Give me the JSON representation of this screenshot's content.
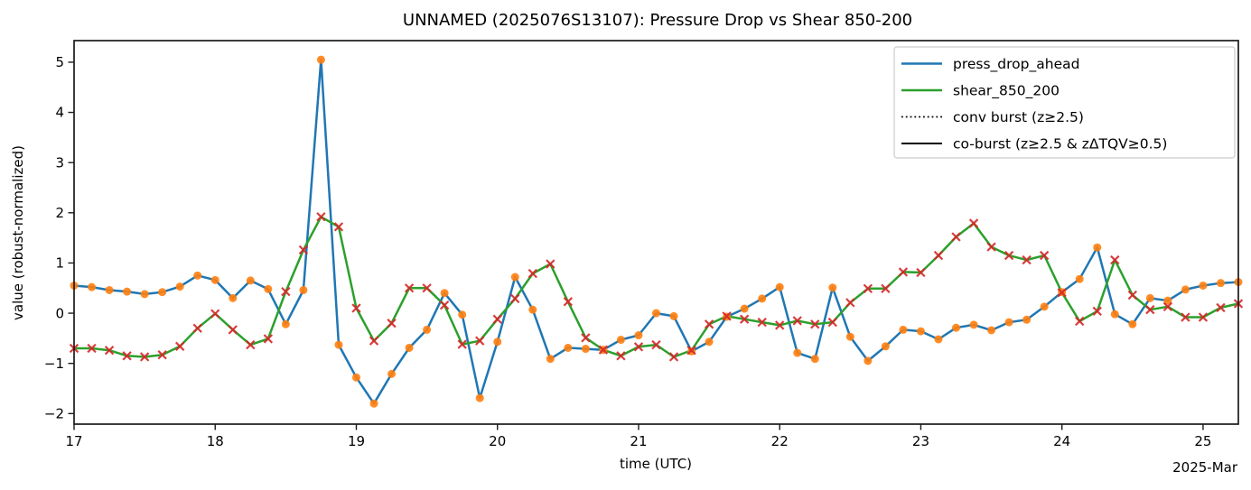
{
  "chart_data": {
    "type": "line",
    "title": "UNNAMED (2025076S13107): Pressure Drop vs Shear 850-200",
    "xlabel": "time (UTC)",
    "ylabel": "value (robust-normalized)",
    "x_offset_label": "2025-Mar",
    "grid": false,
    "legend_position": "upper right",
    "xlim": [
      17.0,
      25.25
    ],
    "ylim": [
      -2.21,
      5.43
    ],
    "x_tick_values": [
      17,
      18,
      19,
      20,
      21,
      22,
      23,
      24,
      25
    ],
    "x_tick_labels": [
      "17",
      "18",
      "19",
      "20",
      "21",
      "22",
      "23",
      "24",
      "25"
    ],
    "y_tick_values": [
      -2,
      -1,
      0,
      1,
      2,
      3,
      4,
      5
    ],
    "y_tick_labels": [
      "−2",
      "−1",
      "0",
      "1",
      "2",
      "3",
      "4",
      "5"
    ],
    "x": [
      17.0,
      17.125,
      17.25,
      17.375,
      17.5,
      17.625,
      17.75,
      17.875,
      18.0,
      18.125,
      18.25,
      18.375,
      18.5,
      18.625,
      18.75,
      18.875,
      19.0,
      19.125,
      19.25,
      19.375,
      19.5,
      19.625,
      19.75,
      19.875,
      20.0,
      20.125,
      20.25,
      20.375,
      20.5,
      20.625,
      20.75,
      20.875,
      21.0,
      21.125,
      21.25,
      21.375,
      21.5,
      21.625,
      21.75,
      21.875,
      22.0,
      22.125,
      22.25,
      22.375,
      22.5,
      22.625,
      22.75,
      22.875,
      23.0,
      23.125,
      23.25,
      23.375,
      23.5,
      23.625,
      23.75,
      23.875,
      24.0,
      24.125,
      24.25,
      24.375,
      24.5,
      24.625,
      24.75,
      24.875,
      25.0,
      25.125,
      25.25
    ],
    "series": [
      {
        "name": "press_drop_ahead",
        "color": "#1f77b4",
        "line_width": 2.5,
        "marker": "circle",
        "marker_color": "#ff7f0e",
        "values": [
          0.55,
          0.52,
          0.46,
          0.43,
          0.38,
          0.42,
          0.53,
          0.75,
          0.66,
          0.3,
          0.65,
          0.48,
          -0.22,
          0.46,
          5.05,
          -0.63,
          -1.28,
          -1.8,
          -1.21,
          -0.69,
          -0.33,
          0.4,
          -0.03,
          -1.69,
          -0.57,
          0.72,
          0.07,
          -0.91,
          -0.69,
          -0.71,
          -0.73,
          -0.53,
          -0.44,
          0.0,
          -0.06,
          -0.76,
          -0.57,
          -0.07,
          0.09,
          0.29,
          0.52,
          -0.79,
          -0.91,
          0.51,
          -0.47,
          -0.95,
          -0.66,
          -0.33,
          -0.36,
          -0.52,
          -0.29,
          -0.23,
          -0.34,
          -0.18,
          -0.13,
          0.13,
          0.42,
          0.68,
          1.31,
          -0.02,
          -0.22,
          0.3,
          0.25,
          0.47,
          0.55,
          0.6,
          0.62
        ]
      },
      {
        "name": "shear_850_200",
        "color": "#2ca02c",
        "line_width": 2.5,
        "marker": "x",
        "marker_color": "#d62728",
        "values": [
          -0.7,
          -0.7,
          -0.74,
          -0.85,
          -0.87,
          -0.83,
          -0.66,
          -0.3,
          -0.01,
          -0.33,
          -0.63,
          -0.51,
          0.43,
          1.26,
          1.92,
          1.72,
          0.1,
          -0.55,
          -0.2,
          0.5,
          0.5,
          0.16,
          -0.62,
          -0.55,
          -0.12,
          0.29,
          0.79,
          0.98,
          0.23,
          -0.49,
          -0.73,
          -0.85,
          -0.67,
          -0.63,
          -0.87,
          -0.74,
          -0.22,
          -0.06,
          -0.12,
          -0.18,
          -0.24,
          -0.15,
          -0.22,
          -0.18,
          0.21,
          0.49,
          0.49,
          0.82,
          0.81,
          1.15,
          1.52,
          1.79,
          1.32,
          1.15,
          1.06,
          1.15,
          0.41,
          -0.16,
          0.04,
          1.06,
          0.36,
          0.07,
          0.13,
          -0.08,
          -0.08,
          0.11,
          0.19
        ]
      }
    ],
    "legend": [
      {
        "label": "press_drop_ahead",
        "color": "#1f77b4",
        "style": "solid"
      },
      {
        "label": "shear_850_200",
        "color": "#2ca02c",
        "style": "solid"
      },
      {
        "label": "conv burst (z≥2.5)",
        "color": "#000000",
        "style": "dotted"
      },
      {
        "label": "co-burst (z≥2.5 & zΔTQV≥0.5)",
        "color": "#000000",
        "style": "solid"
      }
    ]
  }
}
